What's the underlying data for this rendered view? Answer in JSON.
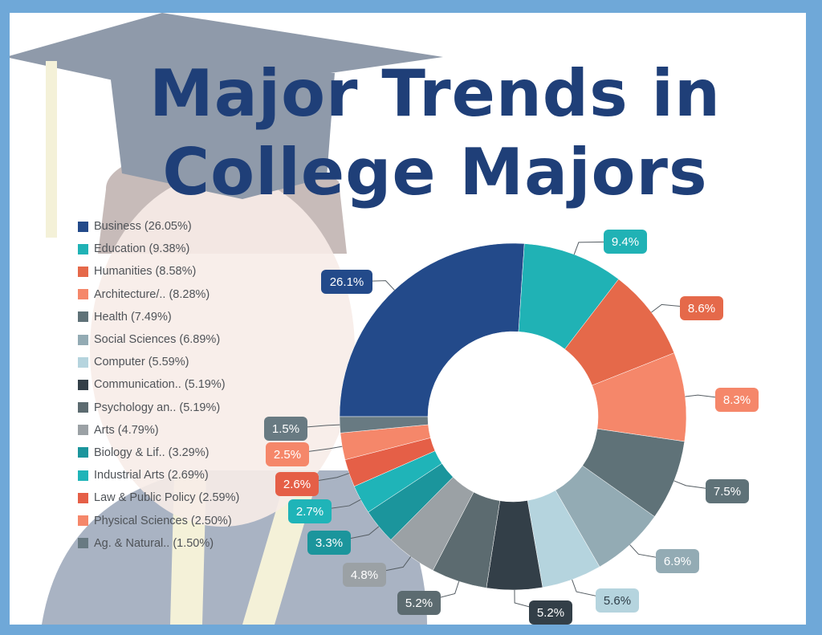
{
  "title": {
    "line1": "Major Trends in",
    "line2": "College Majors"
  },
  "colors": {
    "page_border": "#6fa8d8",
    "title": "#1f3f78",
    "background_figure": "#9aa6b8"
  },
  "chart_data": {
    "type": "pie",
    "style": "donut",
    "legend_position": "left",
    "slices": [
      {
        "legend_label": "Business (26.05%)",
        "value": 26.05,
        "data_label": "26.1%",
        "color": "#234a8a"
      },
      {
        "legend_label": "Education (9.38%)",
        "value": 9.38,
        "data_label": "9.4%",
        "color": "#20b2b5"
      },
      {
        "legend_label": "Humanities (8.58%)",
        "value": 8.58,
        "data_label": "8.6%",
        "color": "#e5694a"
      },
      {
        "legend_label": "Architecture/.. (8.28%)",
        "value": 8.28,
        "data_label": "8.3%",
        "color": "#f5876a"
      },
      {
        "legend_label": "Health (7.49%)",
        "value": 7.49,
        "data_label": "7.5%",
        "color": "#5f7278"
      },
      {
        "legend_label": "Social Sciences (6.89%)",
        "value": 6.89,
        "data_label": "6.9%",
        "color": "#93abb4"
      },
      {
        "legend_label": "Computer (5.59%)",
        "value": 5.59,
        "data_label": "5.6%",
        "color": "#b5d4de"
      },
      {
        "legend_label": "Communication.. (5.19%)",
        "value": 5.19,
        "data_label": "5.2%",
        "color": "#333f48"
      },
      {
        "legend_label": "Psychology an.. (5.19%)",
        "value": 5.19,
        "data_label": "5.2%",
        "color": "#5c6b70"
      },
      {
        "legend_label": "Arts (4.79%)",
        "value": 4.79,
        "data_label": "4.8%",
        "color": "#9ba1a5"
      },
      {
        "legend_label": "Biology & Lif.. (3.29%)",
        "value": 3.29,
        "data_label": "3.3%",
        "color": "#1b959c"
      },
      {
        "legend_label": "Industrial Arts (2.69%)",
        "value": 2.69,
        "data_label": "2.7%",
        "color": "#1fb4b8"
      },
      {
        "legend_label": "Law & Public Policy (2.59%)",
        "value": 2.59,
        "data_label": "2.6%",
        "color": "#e55f47"
      },
      {
        "legend_label": "Physical Sciences (2.50%)",
        "value": 2.5,
        "data_label": "2.5%",
        "color": "#f5876a"
      },
      {
        "legend_label": "Ag. & Natural.. (1.50%)",
        "value": 1.5,
        "data_label": "1.5%",
        "color": "#687a82"
      }
    ]
  }
}
